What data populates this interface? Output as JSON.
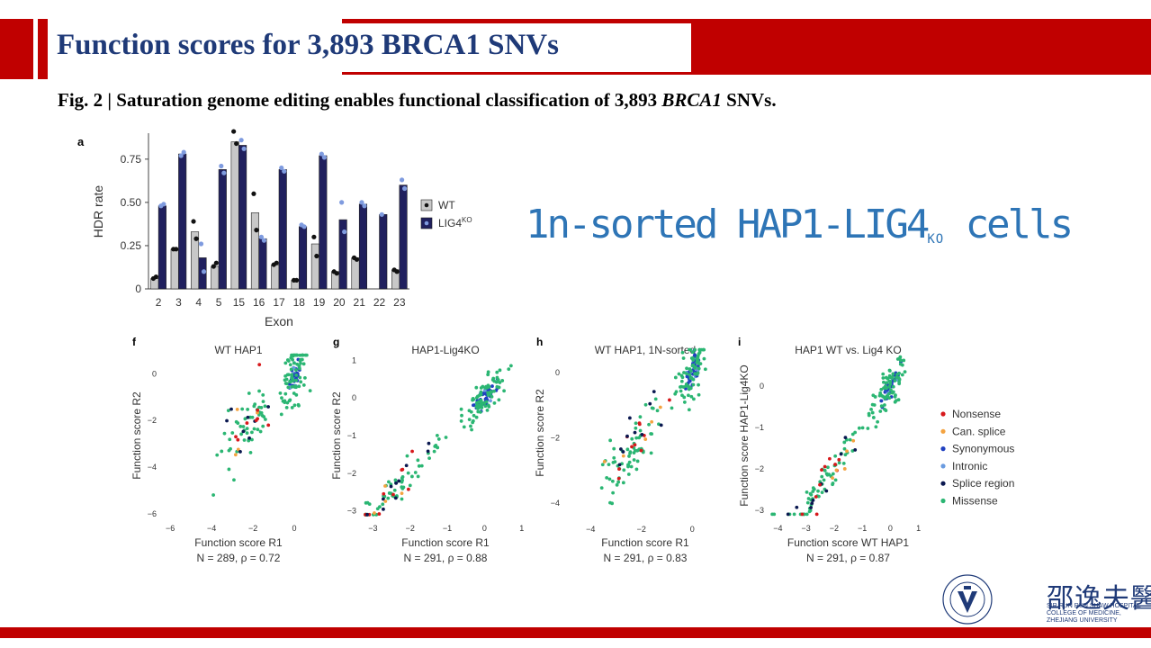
{
  "slide": {
    "title": "Function scores for 3,893 BRCA1 SNVs",
    "caption_prefix": "Fig. 2 | Saturation genome editing enables functional classification of 3,893 ",
    "caption_gene": "BRCA1",
    "caption_suffix": " SNVs.",
    "annotation_main": "1n-sorted HAP1-LIG4",
    "annotation_sub": "KO",
    "annotation_end": " cells",
    "colors": {
      "accent_red": "#c00000",
      "title_blue": "#1f3a78",
      "annot_blue": "#2e75b6"
    }
  },
  "logo": {
    "chinese": "邵逸夫醫院",
    "line1": "SIR RUN RUN SHAW HOSPITAL",
    "line2": "COLLEGE OF MEDICINE,",
    "line3": "ZHEJIANG UNIVERSITY",
    "icon": "hospital-emblem-icon"
  },
  "chart_data": [
    {
      "panel": "a",
      "type": "bar",
      "xlabel": "Exon",
      "ylabel": "HDR rate",
      "categories": [
        "2",
        "3",
        "4",
        "5",
        "15",
        "16",
        "17",
        "18",
        "19",
        "20",
        "21",
        "22",
        "23"
      ],
      "ylim": [
        0,
        0.9
      ],
      "yticks": [
        "0",
        "0.25",
        "0.50",
        "0.75"
      ],
      "ytick_values": [
        0,
        0.25,
        0.5,
        0.75
      ],
      "legend": [
        {
          "label": "WT"
        },
        {
          "label": "LIG4",
          "sup": "KO"
        }
      ],
      "series": [
        {
          "name": "WT",
          "color": "#c8c8c8",
          "values": [
            0.06,
            0.23,
            0.33,
            0.13,
            0.85,
            0.44,
            0.14,
            0.05,
            0.26,
            0.1,
            0.18,
            null,
            0.11
          ],
          "replicates": [
            [
              0.06,
              0.07
            ],
            [
              0.23,
              0.23
            ],
            [
              0.39,
              0.29
            ],
            [
              0.13,
              0.15
            ],
            [
              0.91,
              0.84
            ],
            [
              0.55,
              0.34
            ],
            [
              0.14,
              0.15
            ],
            [
              0.05,
              0.05
            ],
            [
              0.3,
              0.19
            ],
            [
              0.1,
              0.09
            ],
            [
              0.18,
              0.17
            ],
            [],
            [
              0.11,
              0.1
            ]
          ]
        },
        {
          "name": "LIG4KO",
          "color": "#20205e",
          "values": [
            0.48,
            0.78,
            0.18,
            0.69,
            0.83,
            0.29,
            0.69,
            0.36,
            0.77,
            0.4,
            0.49,
            0.43,
            0.6
          ],
          "replicates": [
            [
              0.48,
              0.49
            ],
            [
              0.77,
              0.79
            ],
            [
              0.26,
              0.1
            ],
            [
              0.71,
              0.67
            ],
            [
              0.86,
              0.81
            ],
            [
              0.3,
              0.28
            ],
            [
              0.7,
              0.68
            ],
            [
              0.37,
              0.36
            ],
            [
              0.78,
              0.76
            ],
            [
              0.5,
              0.33
            ],
            [
              0.5,
              0.48
            ],
            [
              0.43
            ],
            [
              0.63,
              0.58
            ]
          ]
        }
      ]
    },
    {
      "panel": "f",
      "type": "scatter",
      "title": "WT HAP1",
      "xlabel": "Function score R1",
      "ylabel": "Function score R2",
      "stats": "N = 289, ρ = 0.72",
      "xlim": [
        -6.4,
        1.0
      ],
      "ylim": [
        -6.2,
        0.9
      ],
      "xticks": [
        -6,
        -4,
        -2,
        0
      ],
      "yticks": [
        0,
        -2,
        -4,
        -6
      ],
      "spread": 0.75,
      "n_missense": 130,
      "n_syn": 38,
      "n_other": 20,
      "corr_note": "moderate correlation, main cloud near 0"
    },
    {
      "panel": "g",
      "type": "scatter",
      "title": "HAP1-Lig4KO",
      "xlabel": "Function score R1",
      "ylabel": "Function score R2",
      "stats": "N = 291, ρ = 0.88",
      "xlim": [
        -3.3,
        1.2
      ],
      "ylim": [
        -3.2,
        1.2
      ],
      "xticks": [
        -3,
        -2,
        -1,
        0,
        1
      ],
      "yticks": [
        1,
        0,
        -1,
        -2,
        -3
      ],
      "spread": 0.22,
      "n_missense": 140,
      "n_syn": 45,
      "n_other": 25
    },
    {
      "panel": "h",
      "type": "scatter",
      "title": "WT HAP1, 1N-sorted",
      "xlabel": "Function score R1",
      "ylabel": "Function score R2",
      "stats": "N = 291, ρ = 0.83",
      "xlim": [
        -5.0,
        1.3
      ],
      "ylim": [
        -4.5,
        0.8
      ],
      "xticks": [
        -4,
        -2,
        0
      ],
      "yticks": [
        0,
        -2,
        -4
      ],
      "spread": 0.45,
      "n_missense": 140,
      "n_syn": 45,
      "n_other": 25
    },
    {
      "panel": "i",
      "type": "scatter",
      "title": "HAP1 WT vs. Lig4 KO",
      "xlabel": "Function score WT HAP1",
      "ylabel": "Function score HAP1-Lig4KO",
      "stats": "N = 291, ρ = 0.87",
      "xlim": [
        -4.3,
        1.3
      ],
      "ylim": [
        -3.2,
        0.8
      ],
      "xticks": [
        -4,
        -3,
        -2,
        -1,
        0,
        1
      ],
      "yticks": [
        0,
        -1,
        -2,
        -3
      ],
      "spread": 0.25,
      "n_missense": 140,
      "n_syn": 45,
      "n_other": 25
    }
  ],
  "scatter_legend": [
    {
      "label": "Nonsense",
      "color": "#d7191c"
    },
    {
      "label": "Can. splice",
      "color": "#f4a340"
    },
    {
      "label": "Synonymous",
      "color": "#2040c0"
    },
    {
      "label": "Intronic",
      "color": "#6a9be0"
    },
    {
      "label": "Splice region",
      "color": "#0a1850"
    },
    {
      "label": "Missense",
      "color": "#2bb673"
    }
  ]
}
